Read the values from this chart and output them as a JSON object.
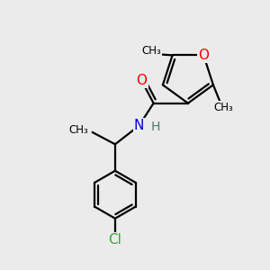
{
  "background_color": "#ebebeb",
  "atom_colors": {
    "C": "#000000",
    "N": "#0000cc",
    "O": "#ff0000",
    "Cl": "#33aa33",
    "H": "#4a7a6a"
  },
  "bond_color": "#000000",
  "bond_width": 1.6,
  "figsize": [
    3.0,
    3.0
  ],
  "dpi": 100,
  "xlim": [
    0,
    10
  ],
  "ylim": [
    0,
    10
  ]
}
